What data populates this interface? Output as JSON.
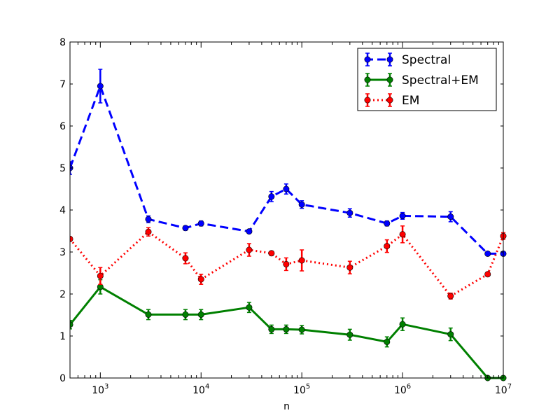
{
  "chart_data": {
    "type": "line",
    "xlabel": "n",
    "ylabel": "",
    "title": "",
    "xscale": "log",
    "xlim": [
      500,
      10000000
    ],
    "ylim": [
      0,
      8
    ],
    "legend_placement": "top-right",
    "x_ticks": [
      {
        "value": 1000,
        "base": "10",
        "exp": "3"
      },
      {
        "value": 10000,
        "base": "10",
        "exp": "4"
      },
      {
        "value": 100000,
        "base": "10",
        "exp": "5"
      },
      {
        "value": 1000000,
        "base": "10",
        "exp": "6"
      },
      {
        "value": 10000000,
        "base": "10",
        "exp": "7"
      }
    ],
    "y_ticks": [
      0,
      1,
      2,
      3,
      4,
      5,
      6,
      7,
      8
    ],
    "series": [
      {
        "name": "Spectral",
        "color": "#0000ff",
        "dash": "dashed",
        "x": [
          500,
          1000,
          3000,
          7000,
          10000,
          30000,
          50000,
          70000,
          100000,
          300000,
          700000,
          1000000,
          3000000,
          7000000,
          10000000
        ],
        "y": [
          5.0,
          6.95,
          3.78,
          3.57,
          3.68,
          3.49,
          4.32,
          4.5,
          4.13,
          3.93,
          3.68,
          3.86,
          3.84,
          2.96,
          2.96
        ],
        "err": [
          0.15,
          0.4,
          0.08,
          0.05,
          0.06,
          0.03,
          0.12,
          0.12,
          0.09,
          0.1,
          0.06,
          0.08,
          0.12,
          0.03,
          0.03
        ]
      },
      {
        "name": "Spectral+EM",
        "color": "#008000",
        "dash": "solid",
        "x": [
          500,
          1000,
          3000,
          7000,
          10000,
          30000,
          50000,
          70000,
          100000,
          300000,
          700000,
          1000000,
          3000000,
          7000000,
          10000000
        ],
        "y": [
          1.27,
          2.17,
          1.51,
          1.51,
          1.51,
          1.68,
          1.16,
          1.16,
          1.15,
          1.03,
          0.86,
          1.28,
          1.04,
          0.0,
          0.0
        ],
        "err": [
          0.1,
          0.17,
          0.12,
          0.12,
          0.12,
          0.12,
          0.1,
          0.1,
          0.1,
          0.13,
          0.12,
          0.15,
          0.15,
          0.02,
          0.02
        ]
      },
      {
        "name": "EM",
        "color": "#ff0000",
        "dash": "dotted",
        "x": [
          500,
          1000,
          3000,
          7000,
          10000,
          30000,
          50000,
          70000,
          100000,
          300000,
          700000,
          1000000,
          3000000,
          7000000,
          10000000
        ],
        "y": [
          3.31,
          2.43,
          3.48,
          2.85,
          2.35,
          3.05,
          2.97,
          2.71,
          2.8,
          2.63,
          3.14,
          3.42,
          1.95,
          2.47,
          3.38
        ],
        "err": [
          0.05,
          0.2,
          0.1,
          0.13,
          0.12,
          0.15,
          0.05,
          0.15,
          0.25,
          0.15,
          0.15,
          0.2,
          0.07,
          0.04,
          0.08
        ]
      }
    ]
  }
}
